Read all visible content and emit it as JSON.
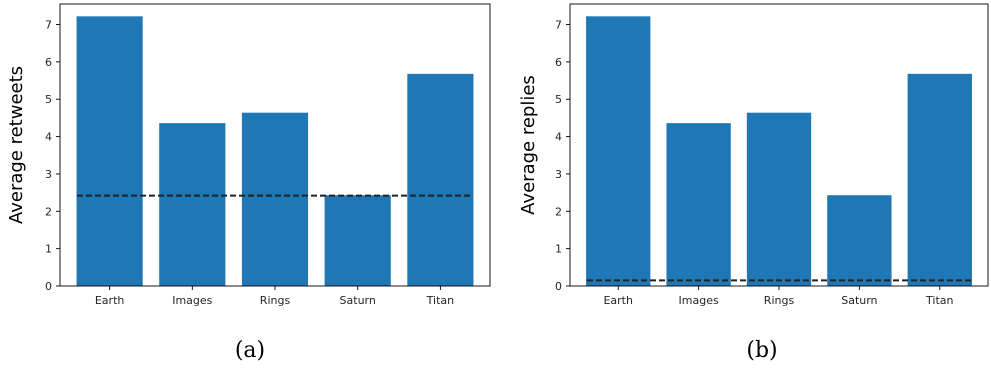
{
  "chart_data": [
    {
      "type": "bar",
      "categories": [
        "Earth",
        "Images",
        "Rings",
        "Saturn",
        "Titan"
      ],
      "values": [
        7.22,
        4.36,
        4.64,
        2.43,
        5.68
      ],
      "reference_line": {
        "value": 2.42,
        "style": "dashed",
        "color": "#222222"
      },
      "ylabel": "Average retweets",
      "xlabel": "",
      "ylim": [
        0,
        7.55
      ],
      "yticks": [
        0,
        1,
        2,
        3,
        4,
        5,
        6,
        7
      ],
      "bar_color": "#1f77b4",
      "grid": false,
      "caption": "(a)"
    },
    {
      "type": "bar",
      "categories": [
        "Earth",
        "Images",
        "Rings",
        "Saturn",
        "Titan"
      ],
      "values": [
        7.22,
        4.36,
        4.64,
        2.43,
        5.68
      ],
      "reference_line": {
        "value": 0.15,
        "style": "dashed",
        "color": "#222222"
      },
      "ylabel": "Average replies",
      "xlabel": "",
      "ylim": [
        0,
        7.55
      ],
      "yticks": [
        0,
        1,
        2,
        3,
        4,
        5,
        6,
        7
      ],
      "bar_color": "#1f77b4",
      "grid": false,
      "caption": "(b)"
    }
  ]
}
